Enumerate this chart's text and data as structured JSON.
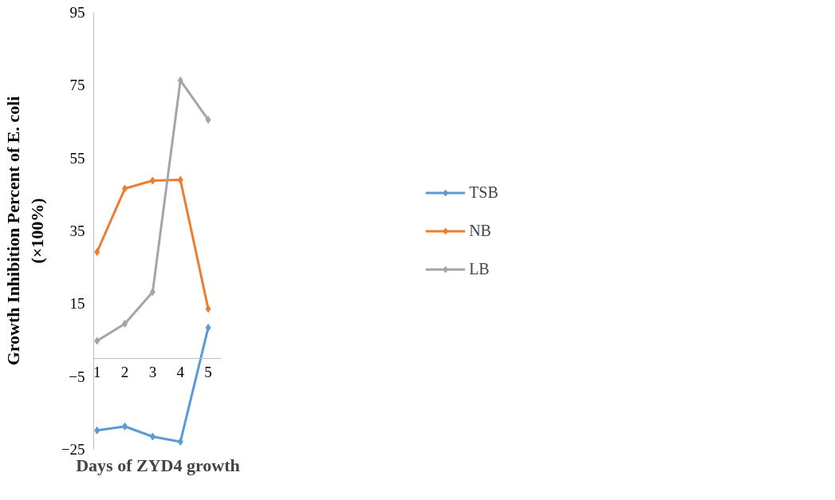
{
  "chart_data": {
    "type": "line",
    "xlabel": "Days of ZYD4 growth",
    "ylabel": "Growth Inhibition Percent of E. coli\n(×100%)",
    "categories": [
      "1",
      "2",
      "3",
      "4",
      "5"
    ],
    "series": [
      {
        "name": "TSB",
        "color": "#5b9bd5",
        "values": [
          -19.8,
          -18.7,
          -21.5,
          -22.9,
          8.4
        ]
      },
      {
        "name": "NB",
        "color": "#ed7d31",
        "values": [
          29.2,
          46.6,
          48.8,
          49.0,
          13.6
        ]
      },
      {
        "name": "LB",
        "color": "#a5a5a5",
        "values": [
          4.8,
          9.5,
          18.2,
          76.3,
          65.5
        ]
      }
    ],
    "ylim": [
      -25,
      95
    ],
    "yticks": [
      -25,
      -5,
      15,
      35,
      55,
      75,
      95
    ],
    "grid": false,
    "legend": "right",
    "marker": "diamond",
    "line_style": "solid"
  }
}
